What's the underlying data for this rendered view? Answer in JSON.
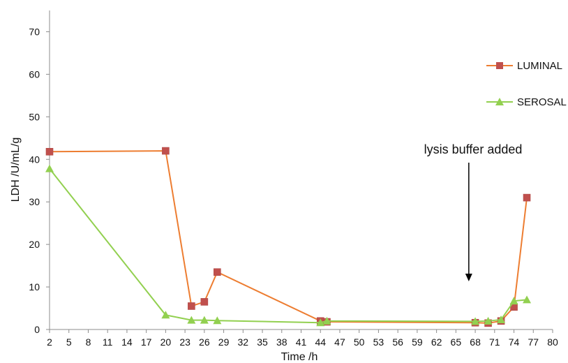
{
  "chart_data": {
    "type": "line",
    "xlabel": "Time /h",
    "ylabel": "LDH  /U/mL/g",
    "x_ticks": [
      2,
      5,
      8,
      11,
      14,
      17,
      20,
      23,
      26,
      29,
      32,
      35,
      38,
      41,
      44,
      47,
      50,
      53,
      56,
      59,
      62,
      65,
      68,
      71,
      74,
      77,
      80
    ],
    "y_ticks": [
      0,
      10,
      20,
      30,
      40,
      50,
      60,
      70
    ],
    "xlim": [
      2,
      80
    ],
    "ylim": [
      0,
      75
    ],
    "grid": false,
    "legend_position": "right",
    "series": [
      {
        "name": "LUMINAL",
        "color": "#ED7D31",
        "marker": "square",
        "marker_color": "#C0504D",
        "points": [
          {
            "x": 2,
            "y": 41.8
          },
          {
            "x": 20,
            "y": 42
          },
          {
            "x": 24,
            "y": 5.5
          },
          {
            "x": 26,
            "y": 6.5
          },
          {
            "x": 28,
            "y": 13.5
          },
          {
            "x": 44,
            "y": 2
          },
          {
            "x": 45,
            "y": 1.8
          },
          {
            "x": 68,
            "y": 1.6
          },
          {
            "x": 70,
            "y": 1.5
          },
          {
            "x": 72,
            "y": 2
          },
          {
            "x": 74,
            "y": 5.3
          },
          {
            "x": 76,
            "y": 31
          }
        ]
      },
      {
        "name": "SEROSAL",
        "color": "#92D050",
        "marker": "triangle",
        "marker_color": "#92D050",
        "points": [
          {
            "x": 2,
            "y": 37.8
          },
          {
            "x": 20,
            "y": 3.4
          },
          {
            "x": 24,
            "y": 2.2
          },
          {
            "x": 26,
            "y": 2.2
          },
          {
            "x": 28,
            "y": 2.1
          },
          {
            "x": 44,
            "y": 1.6
          },
          {
            "x": 45,
            "y": 2
          },
          {
            "x": 68,
            "y": 1.9
          },
          {
            "x": 70,
            "y": 2
          },
          {
            "x": 72,
            "y": 2.3
          },
          {
            "x": 74,
            "y": 6.7
          },
          {
            "x": 76,
            "y": 7
          }
        ]
      }
    ],
    "annotations": [
      {
        "text": "lysis buffer added",
        "arrow_x": 67
      }
    ]
  }
}
